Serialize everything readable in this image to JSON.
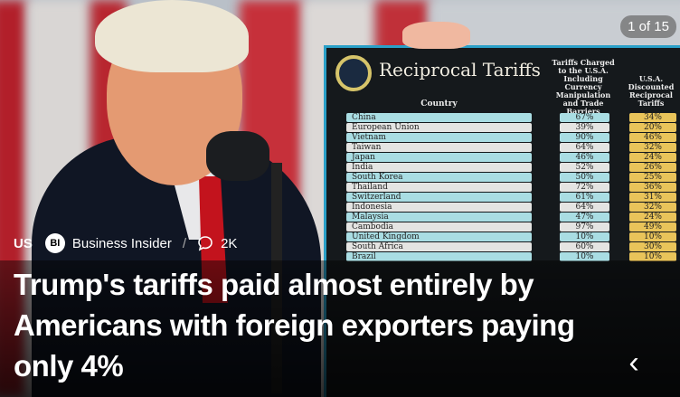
{
  "article": {
    "region": "US",
    "publisher_logo": "BI",
    "publisher": "Business Insider",
    "separator": "/",
    "comment_icon": "speech-bubble-icon",
    "comments": "2K",
    "headline": "Trump's tariffs paid almost entirely by Americans with foreign exporters paying only 4%"
  },
  "gallery": {
    "counter": "1 of 15",
    "prev_icon": "chevron-left-icon"
  },
  "photo_sign": {
    "title": "Reciprocal Tariffs",
    "col_country": "Country",
    "col_charged": "Tariffs Charged to the U.S.A. Including Currency Manipulation and Trade Barriers",
    "col_discounted": "U.S.A. Discounted Reciprocal Tariffs",
    "rows": [
      {
        "country": "China",
        "charged": "67%",
        "discounted": "34%"
      },
      {
        "country": "European Union",
        "charged": "39%",
        "discounted": "20%"
      },
      {
        "country": "Vietnam",
        "charged": "90%",
        "discounted": "46%"
      },
      {
        "country": "Taiwan",
        "charged": "64%",
        "discounted": "32%"
      },
      {
        "country": "Japan",
        "charged": "46%",
        "discounted": "24%"
      },
      {
        "country": "India",
        "charged": "52%",
        "discounted": "26%"
      },
      {
        "country": "South Korea",
        "charged": "50%",
        "discounted": "25%"
      },
      {
        "country": "Thailand",
        "charged": "72%",
        "discounted": "36%"
      },
      {
        "country": "Switzerland",
        "charged": "61%",
        "discounted": "31%"
      },
      {
        "country": "Indonesia",
        "charged": "64%",
        "discounted": "32%"
      },
      {
        "country": "Malaysia",
        "charged": "47%",
        "discounted": "24%"
      },
      {
        "country": "Cambodia",
        "charged": "97%",
        "discounted": "49%"
      },
      {
        "country": "United Kingdom",
        "charged": "10%",
        "discounted": "10%"
      },
      {
        "country": "South Africa",
        "charged": "60%",
        "discounted": "30%"
      },
      {
        "country": "Brazil",
        "charged": "10%",
        "discounted": "10%"
      }
    ]
  },
  "colors": {
    "cyan_row": "#a9dde3",
    "light_row": "#e4e4e2",
    "gold_row": "#e9c45a",
    "overlay": "#000000"
  }
}
